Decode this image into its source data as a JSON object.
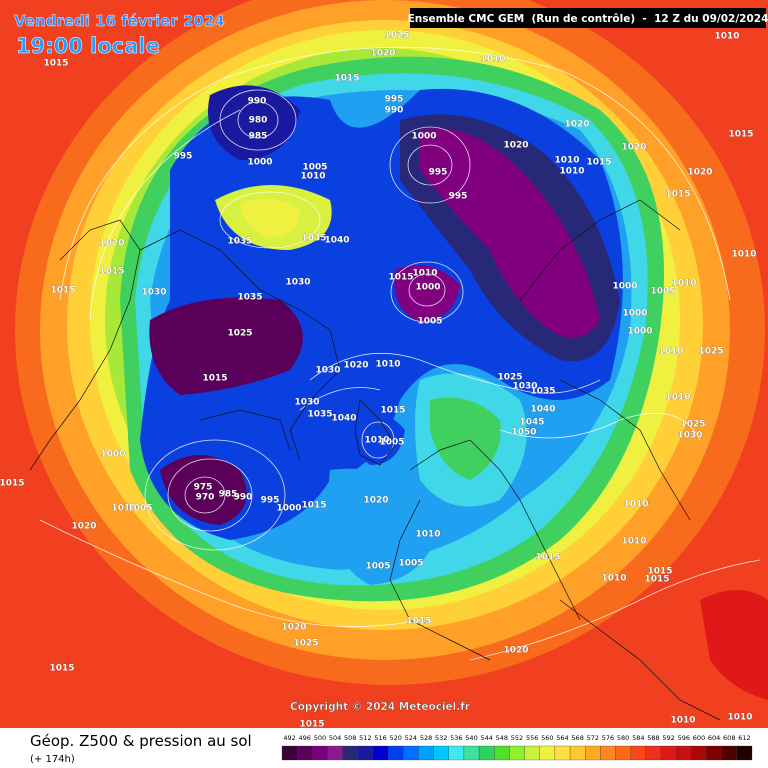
{
  "header": {
    "date": "Vendredi 16 février 2024",
    "time": "19:00 locale",
    "run": "Ensemble CMC GEM  (Run de contrôle)  -  12 Z du 09/02/2024"
  },
  "copyright": "Copyright © 2024 Meteociel.fr",
  "footer": {
    "title": "Géop. Z500 & pression au sol",
    "lead": "(+ 174h)"
  },
  "legend": {
    "values": [
      492,
      496,
      500,
      504,
      508,
      512,
      516,
      520,
      524,
      528,
      532,
      536,
      540,
      544,
      548,
      552,
      556,
      560,
      564,
      568,
      572,
      576,
      580,
      584,
      588,
      592,
      596,
      600,
      604,
      608,
      612
    ],
    "colors": [
      "#3c003c",
      "#5a005a",
      "#78007a",
      "#8c1a8c",
      "#282878",
      "#1a1aa0",
      "#0000d0",
      "#0040f0",
      "#0070ff",
      "#00a0ff",
      "#00c8ff",
      "#40e8f0",
      "#40e0a0",
      "#30d060",
      "#50e030",
      "#90f030",
      "#c8f040",
      "#f0f040",
      "#ffe040",
      "#ffc830",
      "#ffa828",
      "#ff8820",
      "#ff6818",
      "#f84818",
      "#f03018",
      "#e01818",
      "#c81010",
      "#a80808",
      "#800000",
      "#500000",
      "#200000"
    ]
  },
  "isobar_labels": [
    "1015",
    "1025",
    "1020",
    "1010",
    "1010",
    "1015",
    "990",
    "980",
    "985",
    "995",
    "1000",
    "995",
    "990",
    "1000",
    "995",
    "995",
    "1020",
    "1020",
    "1010",
    "1010",
    "1015",
    "1020",
    "1015",
    "1020",
    "1015",
    "1005",
    "1010",
    "1035",
    "1035",
    "1040",
    "1020",
    "1015",
    "1015",
    "1030",
    "1035",
    "1030",
    "1015",
    "1010",
    "1000",
    "1005",
    "1000",
    "1005",
    "1010",
    "1010",
    "1000",
    "1000",
    "1010",
    "1025",
    "1025",
    "1015",
    "1030",
    "1020",
    "1010",
    "1025",
    "1030",
    "1035",
    "1040",
    "1045",
    "1050",
    "1010",
    "1025",
    "1030",
    "1030",
    "1035",
    "1040",
    "1015",
    "1010",
    "1005",
    "1000",
    "1015",
    "975",
    "970",
    "985",
    "990",
    "995",
    "1000",
    "1015",
    "1010",
    "1005",
    "1020",
    "1010",
    "1010",
    "1010",
    "1020",
    "1005",
    "1005",
    "1015",
    "1010",
    "1015",
    "1015",
    "1015",
    "1020",
    "1025",
    "1020",
    "1015",
    "1015",
    "1010",
    "1010"
  ]
}
